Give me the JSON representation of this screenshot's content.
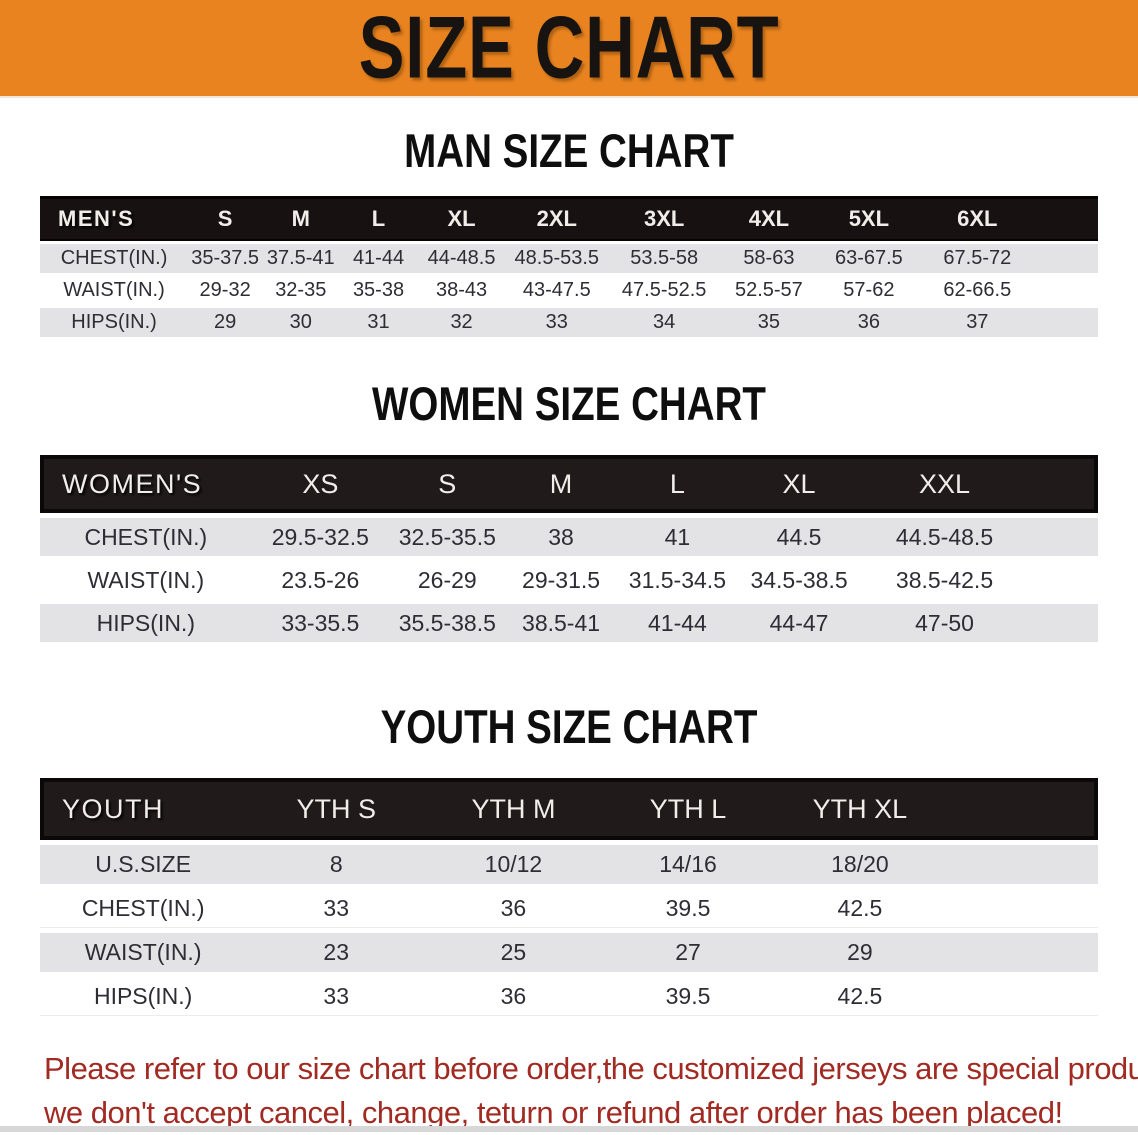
{
  "banner": {
    "title": "SIZE CHART",
    "bg_color": "#E8831F",
    "text_color": "#161310"
  },
  "men": {
    "heading": "MAN SIZE CHART",
    "table": {
      "corner_label": "MEN'S",
      "sizes": [
        "S",
        "M",
        "L",
        "XL",
        "2XL",
        "3XL",
        "4XL",
        "5XL",
        "6XL"
      ],
      "rows": [
        {
          "label": "CHEST(IN.)",
          "values": [
            "35-37.5",
            "37.5-41",
            "41-44",
            "44-48.5",
            "48.5-53.5",
            "53.5-58",
            "58-63",
            "63-67.5",
            "67.5-72"
          ]
        },
        {
          "label": "WAIST(IN.)",
          "values": [
            "29-32",
            "32-35",
            "35-38",
            "38-43",
            "43-47.5",
            "47.5-52.5",
            "52.5-57",
            "57-62",
            "62-66.5"
          ]
        },
        {
          "label": "HIPS(IN.)",
          "values": [
            "29",
            "30",
            "31",
            "32",
            "33",
            "34",
            "35",
            "36",
            "37"
          ]
        }
      ]
    }
  },
  "women": {
    "heading": "WOMEN SIZE CHART",
    "table": {
      "corner_label": "WOMEN'S",
      "sizes": [
        "XS",
        "S",
        "M",
        "L",
        "XL",
        "XXL"
      ],
      "rows": [
        {
          "label": "CHEST(IN.)",
          "values": [
            "29.5-32.5",
            "32.5-35.5",
            "38",
            "41",
            "44.5",
            "44.5-48.5"
          ]
        },
        {
          "label": "WAIST(IN.)",
          "values": [
            "23.5-26",
            "26-29",
            "29-31.5",
            "31.5-34.5",
            "34.5-38.5",
            "38.5-42.5"
          ]
        },
        {
          "label": "HIPS(IN.)",
          "values": [
            "33-35.5",
            "35.5-38.5",
            "38.5-41",
            "41-44",
            "44-47",
            "47-50"
          ]
        }
      ]
    }
  },
  "youth": {
    "heading": "YOUTH SIZE CHART",
    "table": {
      "corner_label": "YOUTH",
      "sizes": [
        "YTH S",
        "YTH M",
        "YTH L",
        "YTH XL"
      ],
      "rows": [
        {
          "label": "U.S.SIZE",
          "values": [
            "8",
            "10/12",
            "14/16",
            "18/20"
          ]
        },
        {
          "label": "CHEST(IN.)",
          "values": [
            "33",
            "36",
            "39.5",
            "42.5"
          ]
        },
        {
          "label": "WAIST(IN.)",
          "values": [
            "23",
            "25",
            "27",
            "29"
          ]
        },
        {
          "label": "HIPS(IN.)",
          "values": [
            "33",
            "36",
            "39.5",
            "42.5"
          ]
        }
      ]
    }
  },
  "disclaimer": {
    "text_color": "#A12A22",
    "line1": "Please refer to our size chart before order,the customized jerseys are special products,",
    "line2": "we don't accept cancel, change, teturn or refund after order has been placed!"
  }
}
